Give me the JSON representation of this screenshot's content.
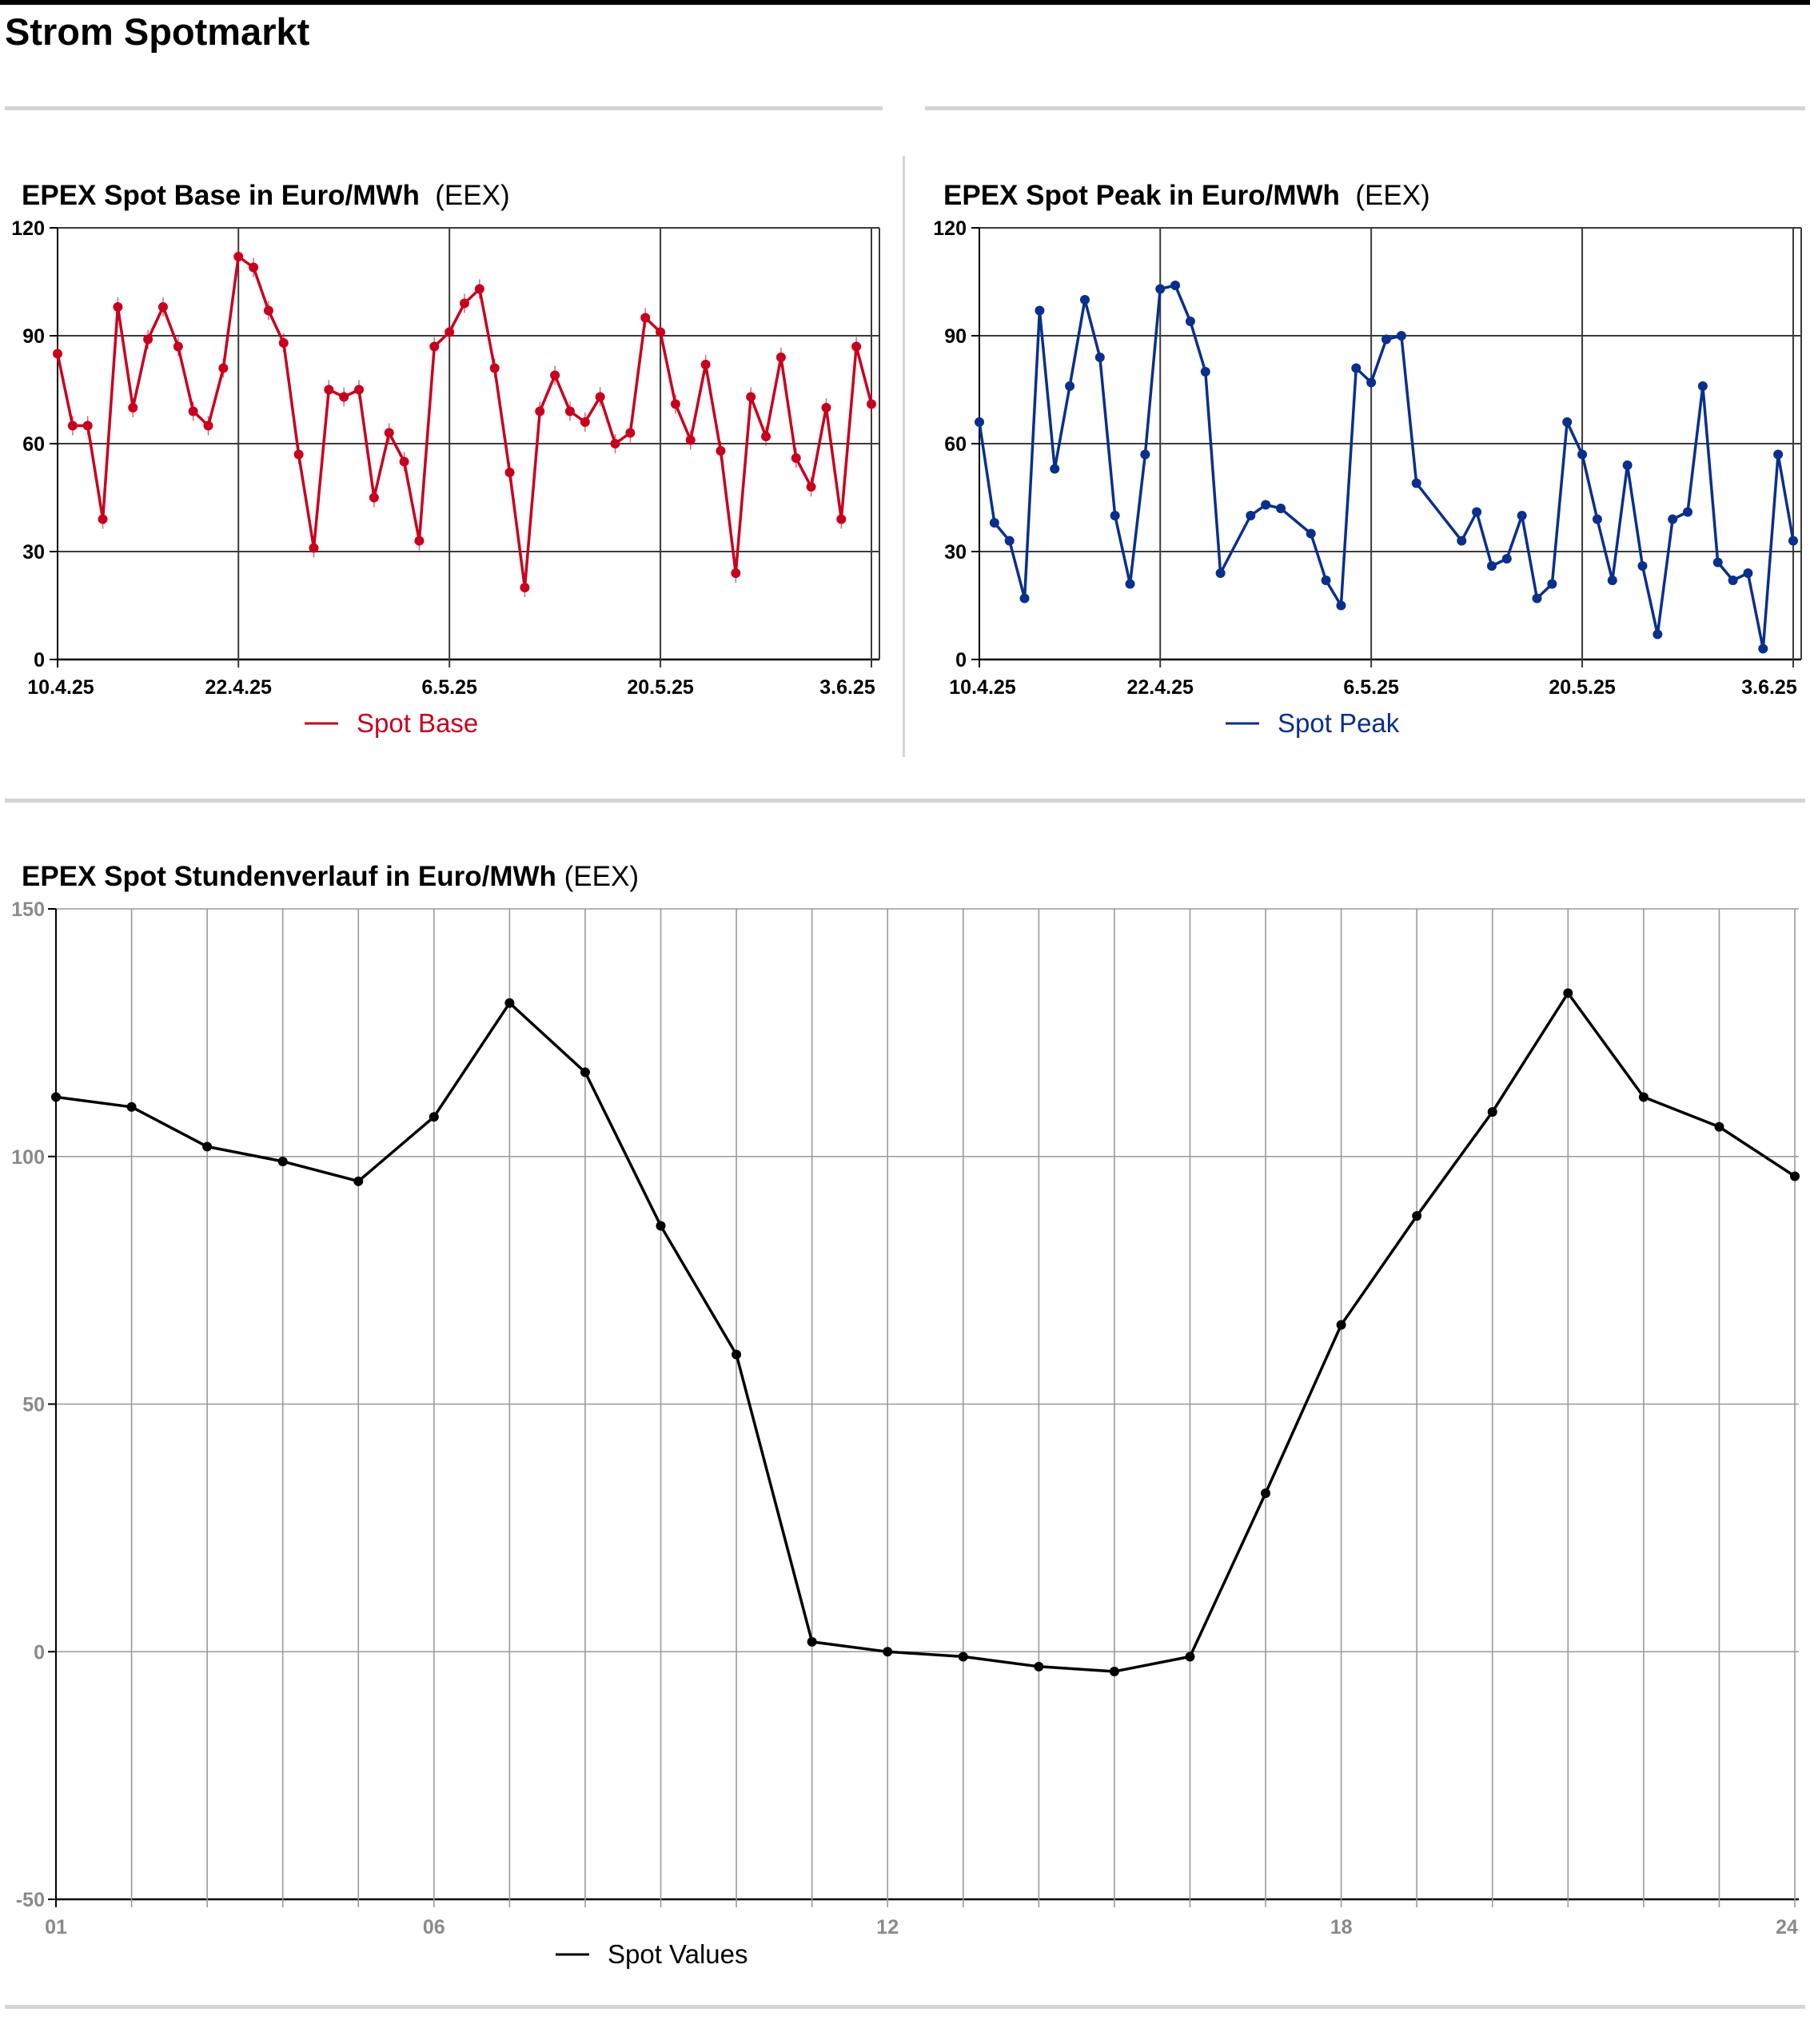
{
  "page": {
    "title": "Strom Spotmarkt"
  },
  "chart_data": [
    {
      "type": "line",
      "title": "EPEX Spot Base in Euro/MWh",
      "source": "(EEX)",
      "x_tick_labels": [
        "10.4.25",
        "22.4.25",
        "6.5.25",
        "20.5.25",
        "3.6.25"
      ],
      "y_ticks": [
        0,
        30,
        60,
        90,
        120
      ],
      "ylim": [
        0,
        120
      ],
      "color": "#c8001e",
      "legend": "Spot Base",
      "series": [
        {
          "name": "Spot Base",
          "values": [
            85,
            65,
            65,
            39,
            98,
            70,
            89,
            98,
            87,
            69,
            65,
            81,
            112,
            109,
            97,
            88,
            57,
            31,
            75,
            73,
            75,
            45,
            63,
            55,
            33,
            87,
            91,
            99,
            103,
            81,
            52,
            20,
            69,
            79,
            69,
            66,
            73,
            60,
            63,
            95,
            91,
            71,
            61,
            82,
            58,
            24,
            73,
            62,
            84,
            56,
            48,
            70,
            39,
            87,
            71
          ]
        }
      ]
    },
    {
      "type": "line",
      "title": "EPEX Spot Peak in Euro/MWh",
      "source": "(EEX)",
      "x_tick_labels": [
        "10.4.25",
        "22.4.25",
        "6.5.25",
        "20.5.25",
        "3.6.25"
      ],
      "y_ticks": [
        0,
        30,
        60,
        90,
        120
      ],
      "ylim": [
        0,
        120
      ],
      "color": "#0a2f8c",
      "legend": "Spot Peak",
      "series": [
        {
          "name": "Spot Peak",
          "points": [
            [
              0,
              66
            ],
            [
              1,
              38
            ],
            [
              2,
              33
            ],
            [
              3,
              17
            ],
            [
              4,
              97
            ],
            [
              5,
              53
            ],
            [
              6,
              76
            ],
            [
              7,
              100
            ],
            [
              8,
              84
            ],
            [
              9,
              40
            ],
            [
              10,
              21
            ],
            [
              11,
              57
            ],
            [
              12,
              103
            ],
            [
              13,
              104
            ],
            [
              14,
              94
            ],
            [
              15,
              80
            ],
            [
              16,
              24
            ],
            [
              18,
              40
            ],
            [
              19,
              43
            ],
            [
              20,
              42
            ],
            [
              22,
              35
            ],
            [
              23,
              22
            ],
            [
              24,
              15
            ],
            [
              25,
              81
            ],
            [
              26,
              77
            ],
            [
              27,
              89
            ],
            [
              28,
              90
            ],
            [
              29,
              49
            ],
            [
              32,
              33
            ],
            [
              33,
              41
            ],
            [
              34,
              26
            ],
            [
              35,
              28
            ],
            [
              36,
              40
            ],
            [
              37,
              17
            ],
            [
              38,
              21
            ],
            [
              39,
              66
            ],
            [
              40,
              57
            ],
            [
              41,
              39
            ],
            [
              42,
              22
            ],
            [
              43,
              54
            ],
            [
              44,
              26
            ],
            [
              45,
              7
            ],
            [
              46,
              39
            ],
            [
              47,
              41
            ],
            [
              48,
              76
            ],
            [
              49,
              27
            ],
            [
              50,
              22
            ],
            [
              51,
              24
            ],
            [
              52,
              3
            ],
            [
              53,
              57
            ],
            [
              54,
              33
            ]
          ]
        }
      ]
    },
    {
      "type": "line",
      "title": "EPEX Spot Stundenverlauf in Euro/MWh",
      "source": "(EEX)",
      "x_tick_labels": [
        "01",
        "06",
        "12",
        "18",
        "24"
      ],
      "y_ticks": [
        -50,
        0,
        50,
        100,
        150
      ],
      "ylim": [
        -50,
        150
      ],
      "color": "#000000",
      "legend": "Spot Values",
      "series": [
        {
          "name": "Spot Values",
          "x": [
            1,
            2,
            3,
            4,
            5,
            6,
            7,
            8,
            9,
            10,
            11,
            12,
            13,
            14,
            15,
            16,
            17,
            18,
            19,
            20,
            21,
            22,
            23,
            24
          ],
          "values": [
            112,
            110,
            102,
            99,
            95,
            108,
            131,
            117,
            86,
            60,
            2,
            0,
            -1,
            -3,
            -4,
            -1,
            32,
            66,
            88,
            109,
            133,
            112,
            106,
            96
          ]
        }
      ]
    }
  ]
}
